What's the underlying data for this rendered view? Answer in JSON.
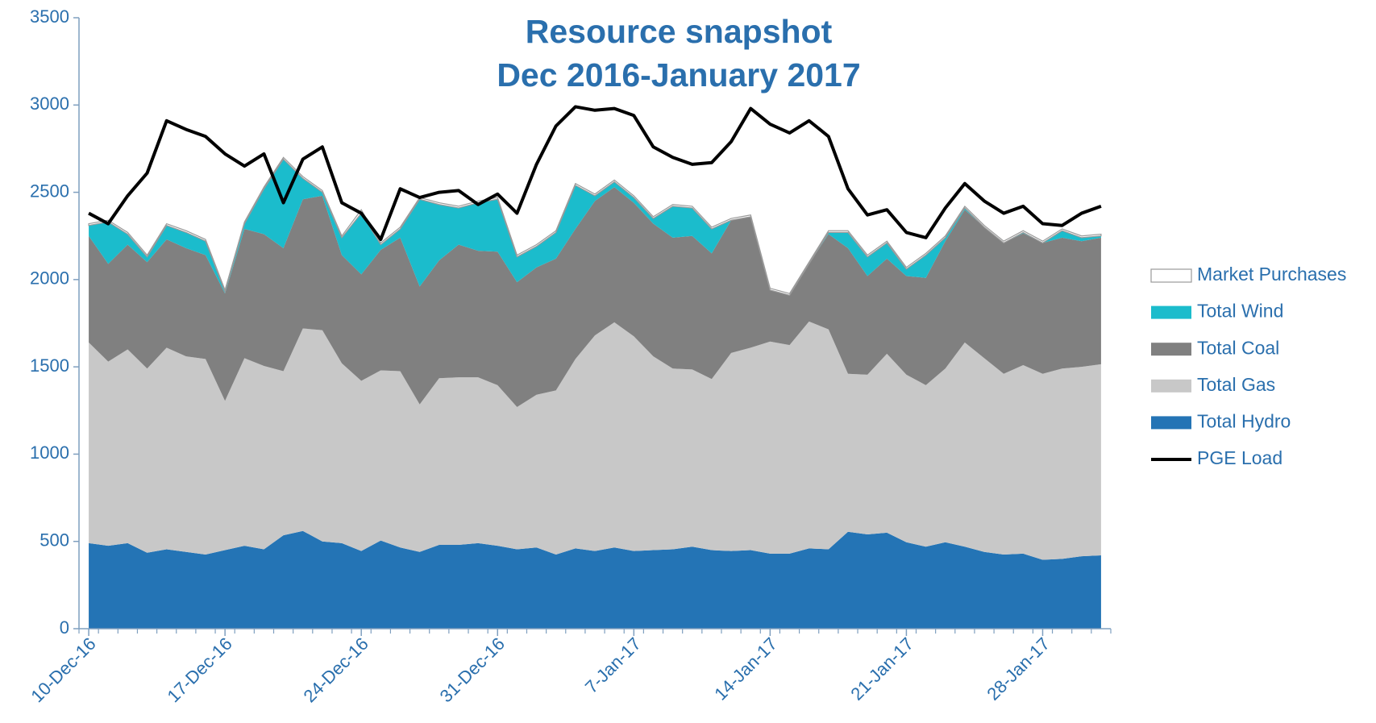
{
  "chart_data": {
    "type": "stacked-area",
    "title": "Resource snapshot",
    "subtitle": "Dec 2016-January 2017",
    "categories": [
      "10-Dec-16",
      null,
      null,
      null,
      null,
      null,
      null,
      "17-Dec-16",
      null,
      null,
      null,
      null,
      null,
      null,
      "24-Dec-16",
      null,
      null,
      null,
      null,
      null,
      null,
      "31-Dec-16",
      null,
      null,
      null,
      null,
      null,
      null,
      "7-Jan-17",
      null,
      null,
      null,
      null,
      null,
      null,
      "14-Jan-17",
      null,
      null,
      null,
      null,
      null,
      null,
      "21-Jan-17",
      null,
      null,
      null,
      null,
      null,
      null,
      "28-Jan-17",
      null,
      null,
      null
    ],
    "ylim": [
      0,
      3500
    ],
    "yticks": [
      0,
      500,
      1000,
      1500,
      2000,
      2500,
      3000,
      3500
    ],
    "series": [
      {
        "name": "Market Purchases",
        "color": "#ffffff",
        "values": [
          10,
          10,
          10,
          10,
          10,
          10,
          10,
          10,
          10,
          10,
          10,
          10,
          10,
          10,
          20,
          10,
          10,
          10,
          10,
          10,
          10,
          10,
          10,
          10,
          10,
          10,
          10,
          10,
          10,
          10,
          10,
          10,
          10,
          10,
          10,
          10,
          10,
          10,
          10,
          10,
          10,
          10,
          10,
          10,
          10,
          10,
          10,
          10,
          10,
          10,
          10,
          10,
          10
        ]
      },
      {
        "name": "Total Wind",
        "color": "#1bbccc",
        "values": [
          60,
          240,
          60,
          30,
          80,
          90,
          80,
          10,
          30,
          260,
          510,
          120,
          20,
          100,
          350,
          30,
          50,
          500,
          320,
          210,
          275,
          300,
          145,
          120,
          150,
          250,
          30,
          30,
          30,
          30,
          180,
          160,
          140,
          0,
          0,
          0,
          0,
          0,
          10,
          90,
          110,
          90,
          40,
          130,
          20,
          10,
          0,
          0,
          5,
          0,
          40,
          20,
          10
        ]
      },
      {
        "name": "Total Coal",
        "color": "#808080",
        "values": [
          610,
          560,
          600,
          610,
          620,
          620,
          595,
          615,
          740,
          755,
          705,
          740,
          770,
          620,
          610,
          690,
          765,
          675,
          675,
          760,
          725,
          765,
          715,
          730,
          755,
          745,
          770,
          775,
          765,
          760,
          750,
          765,
          720,
          760,
          750,
          295,
          285,
          330,
          545,
          720,
          565,
          545,
          565,
          615,
          730,
          760,
          750,
          750,
          755,
          750,
          750,
          720,
          725
        ]
      },
      {
        "name": "Total Gas",
        "color": "#c8c8c8",
        "values": [
          1150,
          1055,
          1110,
          1055,
          1155,
          1120,
          1120,
          855,
          1075,
          1050,
          940,
          1160,
          1210,
          1030,
          975,
          975,
          1010,
          845,
          955,
          960,
          950,
          920,
          815,
          875,
          940,
          1085,
          1235,
          1290,
          1230,
          1110,
          1035,
          1015,
          980,
          1135,
          1160,
          1215,
          1195,
          1300,
          1260,
          905,
          915,
          1025,
          960,
          925,
          995,
          1170,
          1110,
          1035,
          1080,
          1065,
          1090,
          1085,
          1095
        ]
      },
      {
        "name": "Total Hydro",
        "color": "#2474b5",
        "values": [
          490,
          475,
          490,
          435,
          455,
          440,
          425,
          450,
          475,
          455,
          535,
          560,
          500,
          490,
          445,
          505,
          465,
          440,
          480,
          480,
          490,
          475,
          455,
          465,
          425,
          460,
          445,
          465,
          445,
          450,
          455,
          470,
          450,
          445,
          450,
          430,
          430,
          460,
          455,
          555,
          540,
          550,
          495,
          470,
          495,
          470,
          440,
          425,
          430,
          395,
          400,
          415,
          420
        ]
      },
      {
        "name": "PGE Load",
        "color": "#000000",
        "kind": "line",
        "values": [
          2380,
          2320,
          2480,
          2610,
          2910,
          2860,
          2820,
          2720,
          2650,
          2720,
          2440,
          2690,
          2760,
          2440,
          2380,
          2230,
          2520,
          2470,
          2500,
          2510,
          2430,
          2490,
          2380,
          2660,
          2880,
          2990,
          2970,
          2980,
          2940,
          2760,
          2700,
          2660,
          2670,
          2790,
          2980,
          2890,
          2840,
          2910,
          2820,
          2520,
          2370,
          2400,
          2270,
          2240,
          2410,
          2550,
          2450,
          2380,
          2420,
          2320,
          2310,
          2380,
          2420
        ]
      }
    ]
  }
}
